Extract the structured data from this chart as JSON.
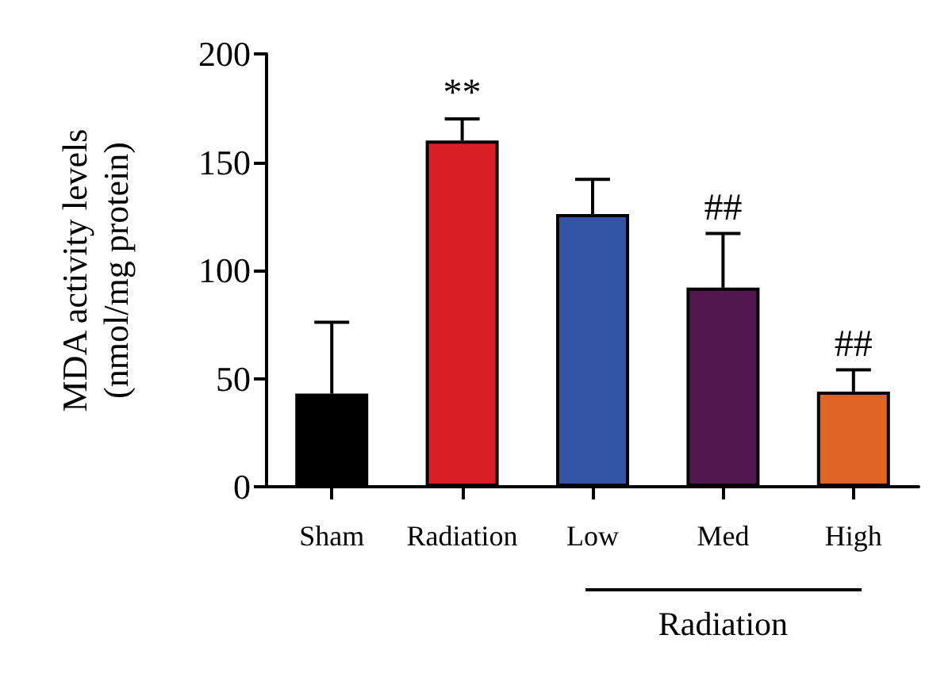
{
  "chart_data": {
    "type": "bar",
    "ylabel": "MDA activity levels\n(nmol/mg protein)",
    "categories": [
      "Sham",
      "Radiation",
      "Low",
      "Med",
      "High"
    ],
    "values": [
      43,
      160,
      126,
      92,
      44
    ],
    "colors": [
      "#000000",
      "#d92027",
      "#3654a5",
      "#52174f",
      "#e06524"
    ],
    "errors": [
      [
        43,
        76
      ],
      [
        160,
        170
      ],
      [
        126,
        142
      ],
      [
        92,
        117
      ],
      [
        44,
        54
      ]
    ],
    "ylim": [
      0,
      200
    ],
    "yticks": [
      0,
      50,
      100,
      150,
      200
    ],
    "grid": false,
    "annotations": [
      {
        "text": "**",
        "x": "Radiation",
        "y": 170
      },
      {
        "text": "##",
        "x": "Med",
        "y": 117
      },
      {
        "text": "##",
        "x": "High",
        "y": 54
      },
      "Radiation"
    ]
  }
}
